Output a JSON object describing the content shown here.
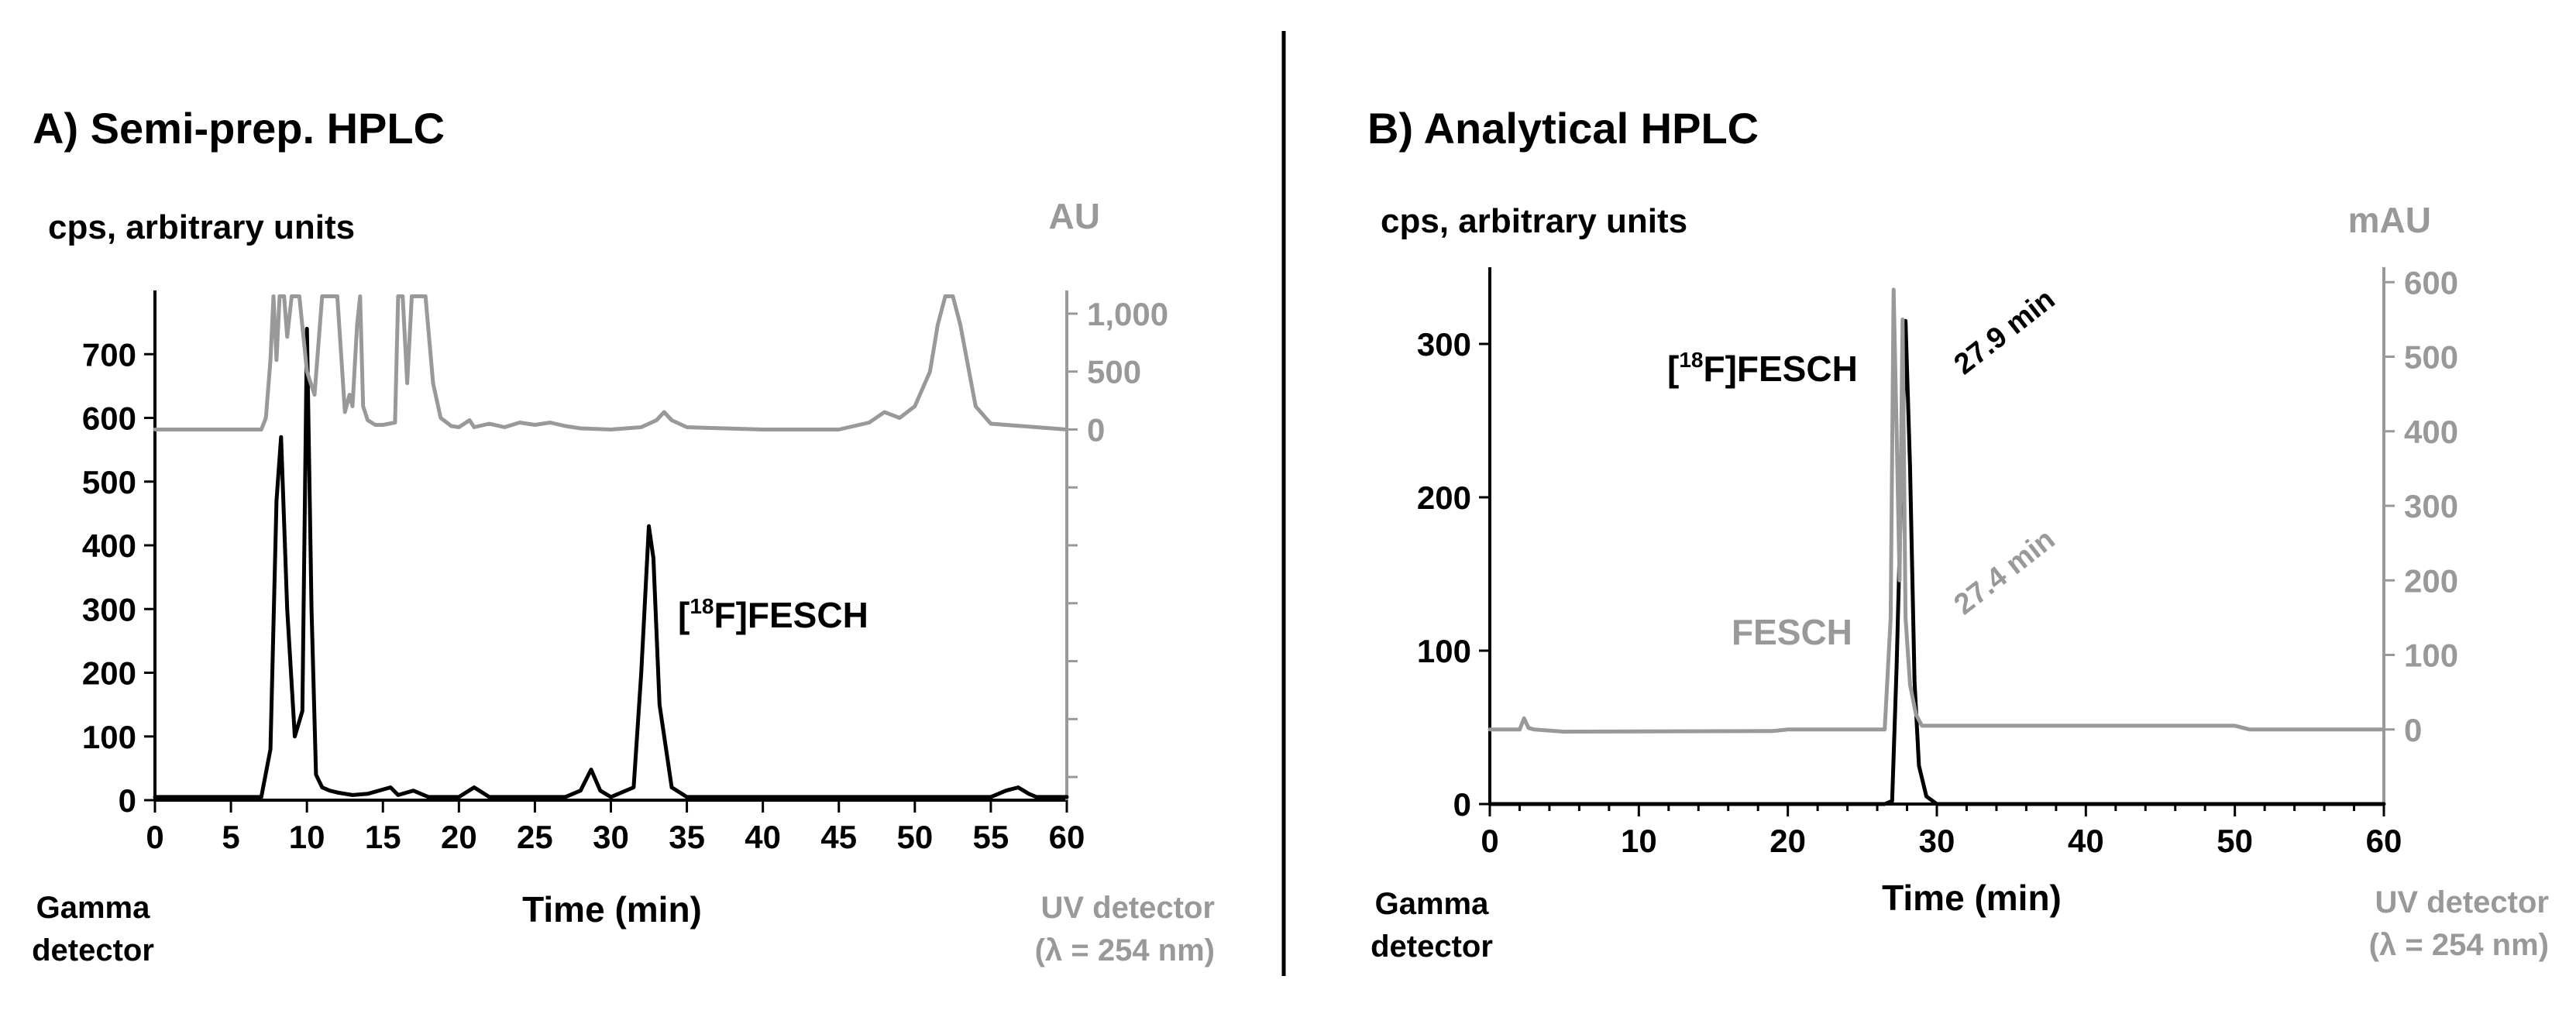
{
  "colors": {
    "gamma": "#000000",
    "uv": "#999999",
    "axis": "#000000",
    "uv_axis": "#999999"
  },
  "chart_data": [
    {
      "type": "line",
      "title": "A) Semi-prep. HPLC",
      "xlabel": "Time (min)",
      "ylabel_left": "cps, arbitrary units",
      "ylabel_right": "AU",
      "left_detector_label": [
        "Gamma",
        "detector"
      ],
      "right_detector_label": [
        "UV detector",
        "(λ = 254 nm)"
      ],
      "xlim": [
        0,
        60
      ],
      "ylim_left": [
        0,
        800
      ],
      "ylim_right": [
        -3200,
        1200
      ],
      "x_ticks": [
        "0",
        "5",
        "10",
        "15",
        "20",
        "25",
        "30",
        "35",
        "40",
        "45",
        "50",
        "55",
        "60"
      ],
      "y_ticks_left": [
        "0",
        "100",
        "200",
        "300",
        "400",
        "500",
        "600",
        "700"
      ],
      "y_ticks_right": [
        "0",
        "500",
        "1,000"
      ],
      "grid": false,
      "series": [
        {
          "detector": "gamma",
          "x": [
            0,
            7,
            7.6,
            8,
            8.3,
            8.7,
            9.2,
            9.7,
            10,
            10.3,
            10.6,
            11,
            11.5,
            12,
            13,
            14,
            15.5,
            16,
            17,
            18,
            20,
            21,
            22,
            25,
            27,
            28,
            28.7,
            29.3,
            30,
            31.5,
            32,
            32.5,
            32.8,
            33.2,
            34,
            35,
            40,
            45,
            50,
            55,
            56,
            56.8,
            57.5,
            58,
            60
          ],
          "y": [
            5,
            5,
            80,
            470,
            570,
            300,
            100,
            140,
            740,
            300,
            40,
            20,
            15,
            12,
            8,
            10,
            20,
            8,
            15,
            5,
            5,
            20,
            5,
            5,
            5,
            15,
            48,
            15,
            5,
            20,
            200,
            430,
            380,
            150,
            20,
            5,
            5,
            5,
            5,
            5,
            15,
            20,
            10,
            5,
            5
          ]
        },
        {
          "detector": "uv",
          "x": [
            0,
            7,
            7.3,
            7.6,
            7.8,
            8,
            8.2,
            8.5,
            8.7,
            9,
            9.5,
            10,
            10.5,
            11,
            11.2,
            11.4,
            12,
            12.5,
            12.8,
            13,
            13.3,
            13.5,
            13.7,
            14,
            14.5,
            15,
            15.8,
            16,
            16.3,
            16.6,
            16.9,
            17.1,
            17.4,
            17.8,
            18.3,
            18.8,
            19.5,
            20,
            20.7,
            21,
            22,
            23,
            24,
            25,
            26,
            27,
            28,
            30,
            32,
            33,
            33.5,
            34,
            35,
            40,
            45,
            47,
            48,
            49,
            50,
            51,
            51.5,
            52,
            52.5,
            53,
            54,
            55,
            60
          ],
          "y": [
            0,
            0,
            100,
            600,
            1150,
            600,
            1150,
            1150,
            800,
            1150,
            1150,
            500,
            300,
            1150,
            1150,
            1150,
            1150,
            150,
            300,
            200,
            900,
            1150,
            200,
            80,
            40,
            40,
            60,
            1150,
            1150,
            400,
            1150,
            1150,
            1150,
            1150,
            400,
            100,
            30,
            20,
            80,
            20,
            50,
            20,
            60,
            40,
            60,
            30,
            10,
            0,
            20,
            80,
            150,
            80,
            20,
            0,
            0,
            60,
            150,
            100,
            200,
            500,
            900,
            1150,
            1150,
            900,
            200,
            50,
            0
          ]
        }
      ],
      "annotations": [
        {
          "text": "[18F]FESCH",
          "prefix": "[",
          "sup": "18",
          "suffix": "F]FESCH"
        }
      ]
    },
    {
      "type": "line",
      "title": "B) Analytical HPLC",
      "xlabel": "Time (min)",
      "ylabel_left": "cps, arbitrary units",
      "ylabel_right": "mAU",
      "left_detector_label": [
        "Gamma",
        "detector"
      ],
      "right_detector_label": [
        "UV detector",
        "(λ = 254 nm)"
      ],
      "xlim": [
        0,
        60
      ],
      "ylim_left": [
        0,
        350
      ],
      "ylim_right": [
        -100,
        620
      ],
      "x_ticks": [
        "0",
        "10",
        "20",
        "30",
        "40",
        "50",
        "60"
      ],
      "y_ticks_left": [
        "0",
        "100",
        "200",
        "300"
      ],
      "y_ticks_right": [
        "0",
        "100",
        "200",
        "300",
        "400",
        "500",
        "600"
      ],
      "grid": false,
      "series": [
        {
          "detector": "gamma",
          "x": [
            0,
            26.5,
            27,
            27.3,
            27.6,
            27.9,
            28.2,
            28.5,
            28.8,
            29.3,
            30,
            60
          ],
          "y": [
            0,
            0,
            2,
            90,
            200,
            315,
            220,
            80,
            25,
            5,
            0,
            0
          ],
          "peak_label": "27.9 min"
        },
        {
          "detector": "uv",
          "x": [
            0,
            2,
            2.3,
            2.6,
            3,
            5,
            19,
            20,
            26.5,
            26.9,
            27.1,
            27.3,
            27.5,
            27.7,
            27.9,
            28.2,
            28.6,
            29,
            30,
            40,
            50,
            51,
            60
          ],
          "y": [
            0,
            0,
            15,
            2,
            0,
            -3,
            -2,
            0,
            0,
            150,
            590,
            400,
            200,
            550,
            150,
            60,
            20,
            5,
            5,
            5,
            5,
            0,
            0
          ],
          "peak_label": "27.4 min"
        }
      ],
      "annotations": [
        {
          "text": "[18F]FESCH",
          "prefix": "[",
          "sup": "18",
          "suffix": "F]FESCH"
        },
        {
          "text": "FESCH"
        }
      ]
    }
  ]
}
